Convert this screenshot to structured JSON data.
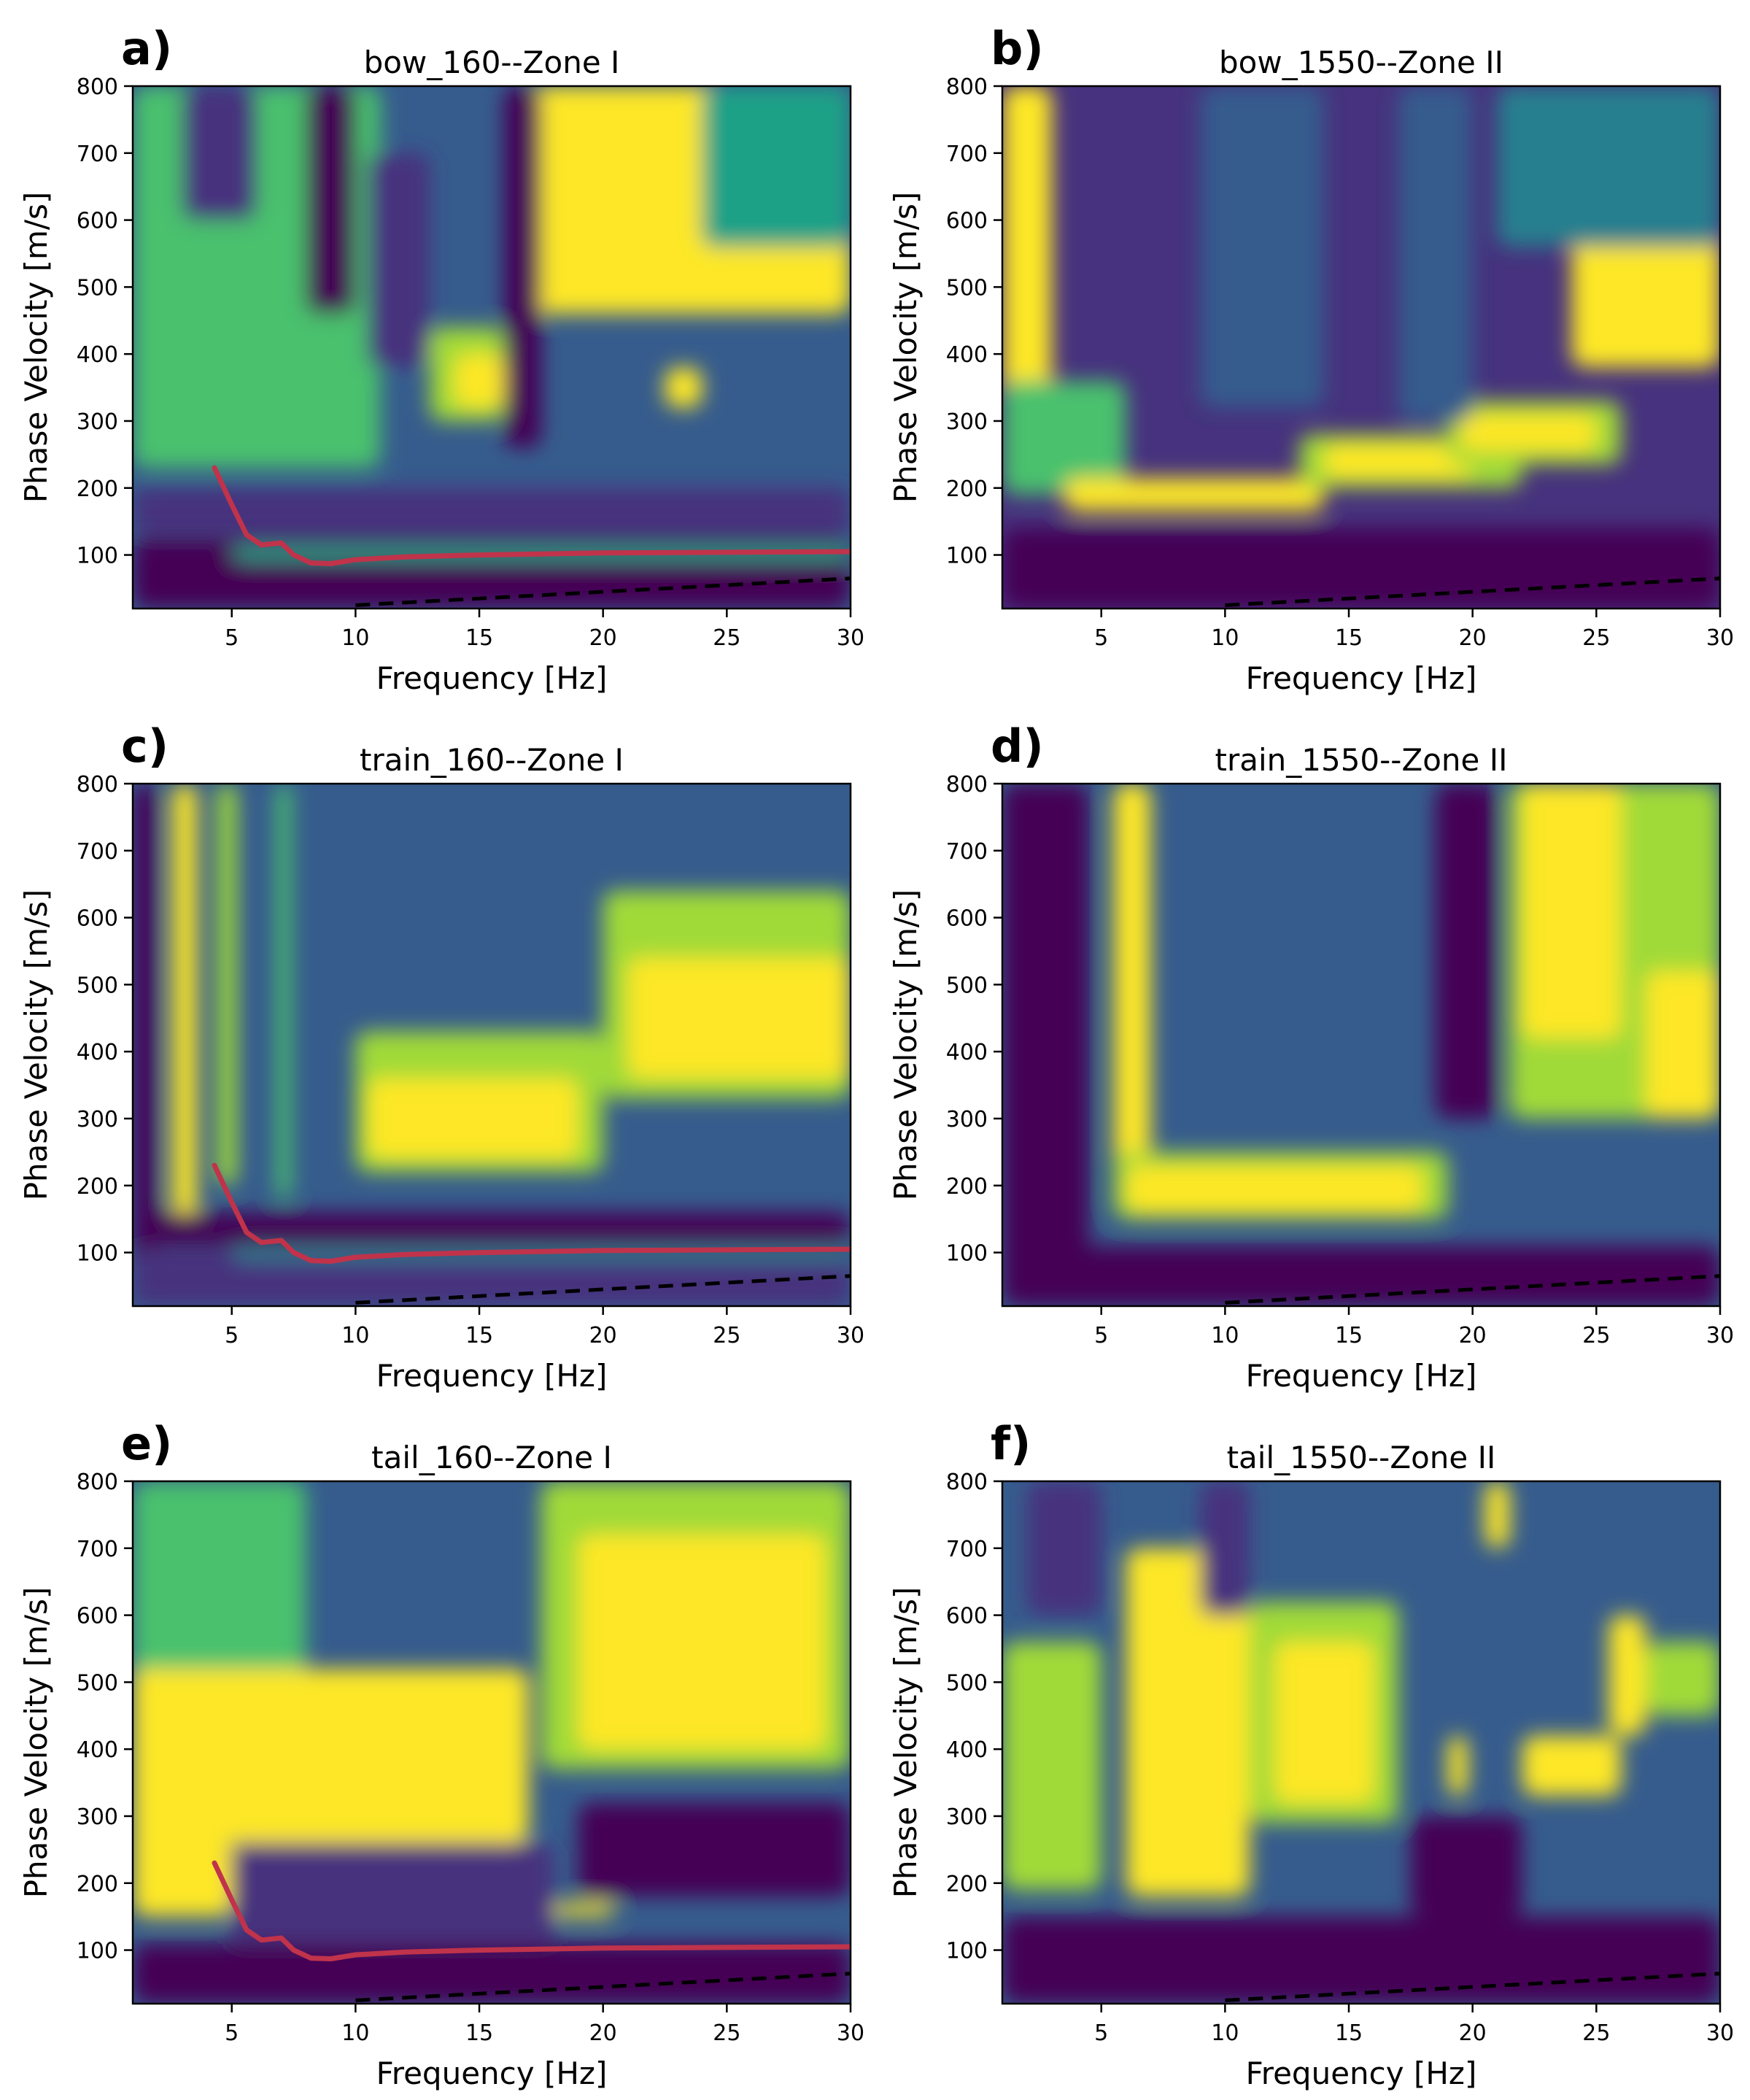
{
  "figure": {
    "colors": {
      "viridis": [
        "#440154",
        "#46327e",
        "#365c8d",
        "#277f8e",
        "#1fa187",
        "#4ac16d",
        "#a0da39",
        "#fde725"
      ],
      "picked_curve": "#c0334b",
      "dashed_line": "#000000"
    }
  },
  "chart_data": [
    {
      "type": "heatmap",
      "id": "a",
      "panel_label": "a)",
      "title": "bow_160--Zone I",
      "xlabel": "Frequency [Hz]",
      "ylabel": "Phase Velocity [m/s]",
      "xlim": [
        1,
        30
      ],
      "ylim": [
        20,
        800
      ],
      "xticks": [
        5,
        10,
        15,
        20,
        25,
        30
      ],
      "yticks": [
        100,
        200,
        300,
        400,
        500,
        600,
        700,
        800
      ],
      "background": 2,
      "regions": [
        {
          "f": [
            1,
            8.5
          ],
          "v": [
            270,
            800
          ],
          "level": 7
        },
        {
          "f": [
            1,
            11
          ],
          "v": [
            230,
            800
          ],
          "level": 5
        },
        {
          "f": [
            17,
            30
          ],
          "v": [
            460,
            800
          ],
          "level": 7
        },
        {
          "f": [
            24,
            30
          ],
          "v": [
            560,
            800
          ],
          "level": 4
        },
        {
          "f": [
            13,
            16
          ],
          "v": [
            300,
            440
          ],
          "level": 6
        },
        {
          "f": [
            14,
            16
          ],
          "v": [
            320,
            400
          ],
          "level": 7
        },
        {
          "f": [
            22.5,
            24
          ],
          "v": [
            320,
            380
          ],
          "level": 7
        },
        {
          "f": [
            3,
            6
          ],
          "v": [
            600,
            800
          ],
          "level": 1
        },
        {
          "f": [
            8,
            10
          ],
          "v": [
            460,
            800
          ],
          "level": 0
        },
        {
          "f": [
            10.5,
            13
          ],
          "v": [
            380,
            700
          ],
          "level": 1
        },
        {
          "f": [
            16,
            17.5
          ],
          "v": [
            260,
            800
          ],
          "level": 0
        },
        {
          "f": [
            1,
            30
          ],
          "v": [
            130,
            200
          ],
          "level": 1
        },
        {
          "f": [
            1,
            30
          ],
          "v": [
            20,
            125
          ],
          "level": 0
        },
        {
          "f": [
            5,
            30
          ],
          "v": [
            92,
            112
          ],
          "level": 4
        }
      ],
      "picked_curve": {
        "f": [
          4.3,
          5,
          5.6,
          6.2,
          7,
          7.5,
          8.2,
          9,
          10,
          12,
          15,
          20,
          25,
          30
        ],
        "v": [
          230,
          175,
          130,
          115,
          118,
          100,
          88,
          87,
          93,
          97,
          100,
          103,
          104,
          105
        ]
      },
      "dashed_line": {
        "f": [
          10,
          30
        ],
        "v": [
          25,
          65
        ]
      }
    },
    {
      "type": "heatmap",
      "id": "b",
      "panel_label": "b)",
      "title": "bow_1550--Zone II",
      "xlabel": "Frequency [Hz]",
      "ylabel": "Phase Velocity [m/s]",
      "xlim": [
        1,
        30
      ],
      "ylim": [
        20,
        800
      ],
      "xticks": [
        5,
        10,
        15,
        20,
        25,
        30
      ],
      "yticks": [
        100,
        200,
        300,
        400,
        500,
        600,
        700,
        800
      ],
      "background": 1,
      "regions": [
        {
          "f": [
            1,
            3
          ],
          "v": [
            200,
            800
          ],
          "level": 7
        },
        {
          "f": [
            1,
            6
          ],
          "v": [
            190,
            360
          ],
          "level": 5
        },
        {
          "f": [
            3.5,
            14
          ],
          "v": [
            165,
            215
          ],
          "level": 7
        },
        {
          "f": [
            13,
            22
          ],
          "v": [
            200,
            280
          ],
          "level": 6
        },
        {
          "f": [
            14,
            20
          ],
          "v": [
            215,
            265
          ],
          "level": 7
        },
        {
          "f": [
            19,
            26
          ],
          "v": [
            235,
            330
          ],
          "level": 6
        },
        {
          "f": [
            19.5,
            25
          ],
          "v": [
            255,
            310
          ],
          "level": 7
        },
        {
          "f": [
            24,
            30
          ],
          "v": [
            380,
            580
          ],
          "level": 7
        },
        {
          "f": [
            21,
            30
          ],
          "v": [
            560,
            800
          ],
          "level": 3
        },
        {
          "f": [
            9,
            14
          ],
          "v": [
            320,
            800
          ],
          "level": 2
        },
        {
          "f": [
            17,
            20
          ],
          "v": [
            300,
            800
          ],
          "level": 2
        },
        {
          "f": [
            1,
            30
          ],
          "v": [
            20,
            140
          ],
          "level": 0
        }
      ],
      "dashed_line": {
        "f": [
          10,
          30
        ],
        "v": [
          25,
          65
        ]
      }
    },
    {
      "type": "heatmap",
      "id": "c",
      "panel_label": "c)",
      "title": "train_160--Zone I",
      "xlabel": "Frequency [Hz]",
      "ylabel": "Phase Velocity [m/s]",
      "xlim": [
        1,
        30
      ],
      "ylim": [
        20,
        800
      ],
      "xticks": [
        5,
        10,
        15,
        20,
        25,
        30
      ],
      "yticks": [
        100,
        200,
        300,
        400,
        500,
        600,
        700,
        800
      ],
      "background": 2,
      "regions": [
        {
          "f": [
            1,
            2
          ],
          "v": [
            20,
            800
          ],
          "level": 0
        },
        {
          "f": [
            2.6,
            3.6
          ],
          "v": [
            150,
            800
          ],
          "level": 7
        },
        {
          "f": [
            4.4,
            5.2
          ],
          "v": [
            200,
            800
          ],
          "level": 6
        },
        {
          "f": [
            6.8,
            7.4
          ],
          "v": [
            180,
            800
          ],
          "level": 5
        },
        {
          "f": [
            10,
            20
          ],
          "v": [
            220,
            430
          ],
          "level": 6
        },
        {
          "f": [
            10.5,
            19
          ],
          "v": [
            240,
            360
          ],
          "level": 7
        },
        {
          "f": [
            20,
            30
          ],
          "v": [
            330,
            640
          ],
          "level": 6
        },
        {
          "f": [
            21,
            30
          ],
          "v": [
            360,
            540
          ],
          "level": 7
        },
        {
          "f": [
            1,
            30
          ],
          "v": [
            110,
            160
          ],
          "level": 0
        },
        {
          "f": [
            1,
            30
          ],
          "v": [
            20,
            105
          ],
          "level": 1
        },
        {
          "f": [
            5,
            30
          ],
          "v": [
            88,
            108
          ],
          "level": 3
        }
      ],
      "picked_curve": {
        "f": [
          4.3,
          5,
          5.6,
          6.2,
          7,
          7.5,
          8.2,
          9,
          10,
          12,
          15,
          20,
          25,
          30
        ],
        "v": [
          230,
          175,
          130,
          115,
          118,
          100,
          88,
          87,
          93,
          97,
          100,
          103,
          104,
          105
        ]
      },
      "dashed_line": {
        "f": [
          10,
          30
        ],
        "v": [
          25,
          65
        ]
      }
    },
    {
      "type": "heatmap",
      "id": "d",
      "panel_label": "d)",
      "title": "train_1550--Zone II",
      "xlabel": "Frequency [Hz]",
      "ylabel": "Phase Velocity [m/s]",
      "xlim": [
        1,
        30
      ],
      "ylim": [
        20,
        800
      ],
      "xticks": [
        5,
        10,
        15,
        20,
        25,
        30
      ],
      "yticks": [
        100,
        200,
        300,
        400,
        500,
        600,
        700,
        800
      ],
      "background": 2,
      "regions": [
        {
          "f": [
            1,
            4.5
          ],
          "v": [
            20,
            800
          ],
          "level": 0
        },
        {
          "f": [
            5.5,
            7
          ],
          "v": [
            200,
            800
          ],
          "level": 7
        },
        {
          "f": [
            5.5,
            19
          ],
          "v": [
            150,
            250
          ],
          "level": 6
        },
        {
          "f": [
            6,
            18
          ],
          "v": [
            160,
            230
          ],
          "level": 7
        },
        {
          "f": [
            21.5,
            30
          ],
          "v": [
            300,
            800
          ],
          "level": 6
        },
        {
          "f": [
            22,
            26
          ],
          "v": [
            420,
            800
          ],
          "level": 7
        },
        {
          "f": [
            27,
            30
          ],
          "v": [
            300,
            520
          ],
          "level": 7
        },
        {
          "f": [
            18.5,
            21
          ],
          "v": [
            300,
            800
          ],
          "level": 0
        },
        {
          "f": [
            1,
            30
          ],
          "v": [
            20,
            110
          ],
          "level": 0
        }
      ],
      "dashed_line": {
        "f": [
          10,
          30
        ],
        "v": [
          25,
          65
        ]
      }
    },
    {
      "type": "heatmap",
      "id": "e",
      "panel_label": "e)",
      "title": "tail_160--Zone I",
      "xlabel": "Frequency [Hz]",
      "ylabel": "Phase Velocity [m/s]",
      "xlim": [
        1,
        30
      ],
      "ylim": [
        20,
        800
      ],
      "xticks": [
        5,
        10,
        15,
        20,
        25,
        30
      ],
      "yticks": [
        100,
        200,
        300,
        400,
        500,
        600,
        700,
        800
      ],
      "background": 2,
      "regions": [
        {
          "f": [
            1,
            8
          ],
          "v": [
            450,
            800
          ],
          "level": 5
        },
        {
          "f": [
            1,
            17
          ],
          "v": [
            260,
            520
          ],
          "level": 7
        },
        {
          "f": [
            1,
            5
          ],
          "v": [
            150,
            460
          ],
          "level": 7
        },
        {
          "f": [
            17.5,
            30
          ],
          "v": [
            370,
            800
          ],
          "level": 6
        },
        {
          "f": [
            19,
            29
          ],
          "v": [
            400,
            720
          ],
          "level": 7
        },
        {
          "f": [
            18,
            20.5
          ],
          "v": [
            150,
            170
          ],
          "level": 7
        },
        {
          "f": [
            5,
            18
          ],
          "v": [
            100,
            260
          ],
          "level": 1
        },
        {
          "f": [
            1,
            30
          ],
          "v": [
            20,
            110
          ],
          "level": 0
        },
        {
          "f": [
            19,
            30
          ],
          "v": [
            180,
            320
          ],
          "level": 0
        }
      ],
      "picked_curve": {
        "f": [
          4.3,
          5,
          5.6,
          6.2,
          7,
          7.5,
          8.2,
          9,
          10,
          12,
          15,
          20,
          25,
          30
        ],
        "v": [
          230,
          175,
          130,
          115,
          118,
          100,
          88,
          87,
          93,
          97,
          100,
          103,
          104,
          105
        ]
      },
      "dashed_line": {
        "f": [
          10,
          30
        ],
        "v": [
          25,
          65
        ]
      }
    },
    {
      "type": "heatmap",
      "id": "f",
      "panel_label": "f)",
      "title": "tail_1550--Zone II",
      "xlabel": "Frequency [Hz]",
      "ylabel": "Phase Velocity [m/s]",
      "xlim": [
        1,
        30
      ],
      "ylim": [
        20,
        800
      ],
      "xticks": [
        5,
        10,
        15,
        20,
        25,
        30
      ],
      "yticks": [
        100,
        200,
        300,
        400,
        500,
        600,
        700,
        800
      ],
      "background": 2,
      "regions": [
        {
          "f": [
            1,
            5
          ],
          "v": [
            190,
            560
          ],
          "level": 6
        },
        {
          "f": [
            6,
            11
          ],
          "v": [
            180,
            700
          ],
          "level": 7
        },
        {
          "f": [
            11,
            17
          ],
          "v": [
            290,
            620
          ],
          "level": 6
        },
        {
          "f": [
            12,
            16
          ],
          "v": [
            320,
            560
          ],
          "level": 7
        },
        {
          "f": [
            19,
            19.8
          ],
          "v": [
            330,
            420
          ],
          "level": 7
        },
        {
          "f": [
            20.5,
            21.5
          ],
          "v": [
            700,
            800
          ],
          "level": 7
        },
        {
          "f": [
            22,
            26
          ],
          "v": [
            330,
            420
          ],
          "level": 7
        },
        {
          "f": [
            25.5,
            27
          ],
          "v": [
            420,
            600
          ],
          "level": 7
        },
        {
          "f": [
            27,
            30
          ],
          "v": [
            450,
            560
          ],
          "level": 6
        },
        {
          "f": [
            1,
            30
          ],
          "v": [
            20,
            150
          ],
          "level": 0
        },
        {
          "f": [
            17.5,
            22
          ],
          "v": [
            150,
            300
          ],
          "level": 0
        },
        {
          "f": [
            2,
            5
          ],
          "v": [
            600,
            800
          ],
          "level": 1
        },
        {
          "f": [
            9,
            11
          ],
          "v": [
            600,
            800
          ],
          "level": 1
        }
      ],
      "dashed_line": {
        "f": [
          10,
          30
        ],
        "v": [
          25,
          65
        ]
      }
    }
  ]
}
